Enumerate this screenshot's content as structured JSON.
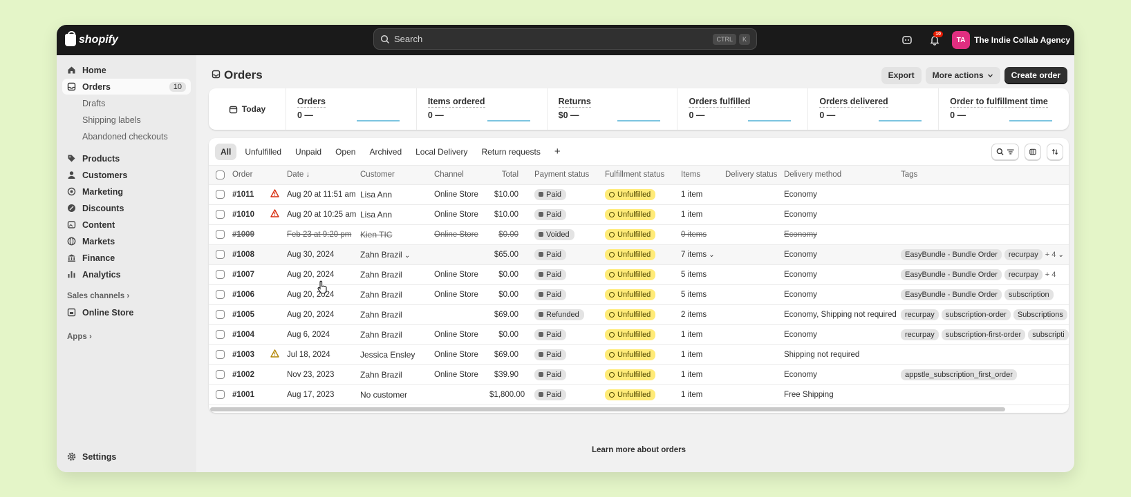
{
  "topbar": {
    "logo_text": "shopify",
    "search_placeholder": "Search",
    "shortcut_keys": [
      "CTRL",
      "K"
    ],
    "notification_count": "10",
    "store_initials": "TA",
    "store_name": "The Indie Collab Agency"
  },
  "sidebar": {
    "home": "Home",
    "orders": "Orders",
    "orders_count": "10",
    "drafts": "Drafts",
    "shipping_labels": "Shipping labels",
    "abandoned_checkouts": "Abandoned checkouts",
    "products": "Products",
    "customers": "Customers",
    "marketing": "Marketing",
    "discounts": "Discounts",
    "content": "Content",
    "markets": "Markets",
    "finance": "Finance",
    "analytics": "Analytics",
    "sales_channels_heading": "Sales channels",
    "online_store": "Online Store",
    "apps_heading": "Apps",
    "settings": "Settings"
  },
  "page": {
    "title": "Orders",
    "export_label": "Export",
    "more_actions_label": "More actions",
    "create_order_label": "Create order",
    "learn_more": "Learn more about orders"
  },
  "metrics": {
    "date_label": "Today",
    "items": [
      {
        "label": "Orders",
        "value": "0 —"
      },
      {
        "label": "Items ordered",
        "value": "0 —"
      },
      {
        "label": "Returns",
        "value": "$0 —"
      },
      {
        "label": "Orders fulfilled",
        "value": "0 —"
      },
      {
        "label": "Orders delivered",
        "value": "0 —"
      },
      {
        "label": "Order to fulfillment time",
        "value": "0 —"
      }
    ]
  },
  "tabs": [
    "All",
    "Unfulfilled",
    "Unpaid",
    "Open",
    "Archived",
    "Local Delivery",
    "Return requests"
  ],
  "table": {
    "headers": {
      "order": "Order",
      "date": "Date ↓",
      "customer": "Customer",
      "channel": "Channel",
      "total": "Total",
      "payment": "Payment status",
      "fulfillment": "Fulfillment status",
      "items": "Items",
      "delivery_status": "Delivery status",
      "delivery_method": "Delivery method",
      "tags": "Tags"
    },
    "rows": [
      {
        "order": "#1011",
        "warn": "red",
        "date": "Aug 20 at 11:51 am",
        "customer": "Lisa Ann",
        "channel": "Online Store",
        "total": "$10.00",
        "payment": "Paid",
        "fulfillment": "Unfulfilled",
        "items": "1 item",
        "delivery_method": "Economy",
        "tags": [],
        "more_tags": ""
      },
      {
        "order": "#1010",
        "warn": "red",
        "date": "Aug 20 at 10:25 am",
        "customer": "Lisa Ann",
        "channel": "Online Store",
        "total": "$10.00",
        "payment": "Paid",
        "fulfillment": "Unfulfilled",
        "items": "1 item",
        "delivery_method": "Economy",
        "tags": [],
        "more_tags": ""
      },
      {
        "order": "#1009",
        "warn": "",
        "date": "Feb 23 at 9:20 pm",
        "customer": "Kien TIC",
        "channel": "Online Store",
        "total": "$0.00",
        "payment": "Voided",
        "fulfillment": "Unfulfilled",
        "items": "0 items",
        "delivery_method": "Economy",
        "tags": [],
        "more_tags": "",
        "voided": true
      },
      {
        "order": "#1008",
        "warn": "",
        "date": "Aug 30, 2024",
        "customer": "Zahn Brazil",
        "channel": "",
        "total": "$65.00",
        "payment": "Paid",
        "fulfillment": "Unfulfilled",
        "items": "7 items",
        "delivery_method": "Economy",
        "tags": [
          "EasyBundle - Bundle Order",
          "recurpay"
        ],
        "more_tags": "+ 4",
        "hovered": true
      },
      {
        "order": "#1007",
        "warn": "",
        "date": "Aug 20, 2024",
        "customer": "Zahn Brazil",
        "channel": "Online Store",
        "total": "$0.00",
        "payment": "Paid",
        "fulfillment": "Unfulfilled",
        "items": "5 items",
        "delivery_method": "Economy",
        "tags": [
          "EasyBundle - Bundle Order",
          "recurpay"
        ],
        "more_tags": "+ 4"
      },
      {
        "order": "#1006",
        "warn": "",
        "date": "Aug 20, 2024",
        "customer": "Zahn Brazil",
        "channel": "Online Store",
        "total": "$0.00",
        "payment": "Paid",
        "fulfillment": "Unfulfilled",
        "items": "5 items",
        "delivery_method": "Economy",
        "tags": [
          "EasyBundle - Bundle Order",
          "subscription"
        ],
        "more_tags": ""
      },
      {
        "order": "#1005",
        "warn": "",
        "date": "Aug 20, 2024",
        "customer": "Zahn Brazil",
        "channel": "",
        "total": "$69.00",
        "payment": "Refunded",
        "fulfillment": "Unfulfilled",
        "items": "2 items",
        "delivery_method": "Economy, Shipping not required",
        "tags": [
          "recurpay",
          "subscription-order",
          "Subscriptions"
        ],
        "more_tags": ""
      },
      {
        "order": "#1004",
        "warn": "",
        "date": "Aug 6, 2024",
        "customer": "Zahn Brazil",
        "channel": "Online Store",
        "total": "$0.00",
        "payment": "Paid",
        "fulfillment": "Unfulfilled",
        "items": "1 item",
        "delivery_method": "Economy",
        "tags": [
          "recurpay",
          "subscription-first-order",
          "subscripti"
        ],
        "more_tags": ""
      },
      {
        "order": "#1003",
        "warn": "yellow",
        "date": "Jul 18, 2024",
        "customer": "Jessica Ensley",
        "channel": "Online Store",
        "total": "$69.00",
        "payment": "Paid",
        "fulfillment": "Unfulfilled",
        "items": "1 item",
        "delivery_method": "Shipping not required",
        "tags": [],
        "more_tags": ""
      },
      {
        "order": "#1002",
        "warn": "",
        "date": "Nov 23, 2023",
        "customer": "Zahn Brazil",
        "channel": "Online Store",
        "total": "$39.90",
        "payment": "Paid",
        "fulfillment": "Unfulfilled",
        "items": "1 item",
        "delivery_method": "Economy",
        "tags": [
          "appstle_subscription_first_order"
        ],
        "more_tags": ""
      },
      {
        "order": "#1001",
        "warn": "",
        "date": "Aug 17, 2023",
        "customer": "No customer",
        "channel": "",
        "total": "$1,800.00",
        "payment": "Paid",
        "fulfillment": "Unfulfilled",
        "items": "1 item",
        "delivery_method": "Free Shipping",
        "tags": [],
        "more_tags": ""
      }
    ]
  },
  "colors": {
    "background": "#e4f5c8",
    "topbar": "#1a1a1a",
    "unfulfilled_badge": "#ffeb78",
    "avatar": "#e02e80",
    "warn_red": "#d72c0d",
    "warn_yellow": "#b28400"
  }
}
